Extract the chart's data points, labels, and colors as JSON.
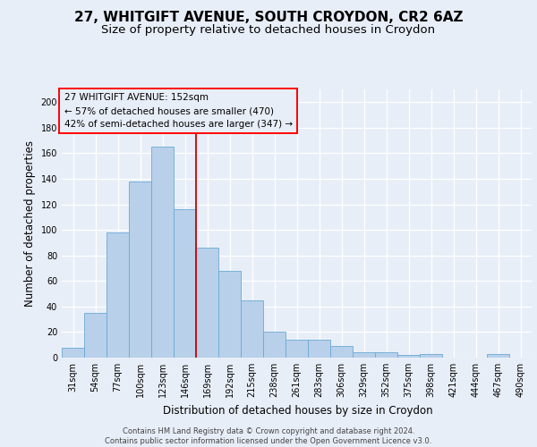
{
  "title1": "27, WHITGIFT AVENUE, SOUTH CROYDON, CR2 6AZ",
  "title2": "Size of property relative to detached houses in Croydon",
  "xlabel": "Distribution of detached houses by size in Croydon",
  "ylabel": "Number of detached properties",
  "categories": [
    "31sqm",
    "54sqm",
    "77sqm",
    "100sqm",
    "123sqm",
    "146sqm",
    "169sqm",
    "192sqm",
    "215sqm",
    "238sqm",
    "261sqm",
    "283sqm",
    "306sqm",
    "329sqm",
    "352sqm",
    "375sqm",
    "398sqm",
    "421sqm",
    "444sqm",
    "467sqm",
    "490sqm"
  ],
  "values": [
    8,
    35,
    98,
    138,
    165,
    116,
    86,
    68,
    45,
    20,
    14,
    14,
    9,
    4,
    4,
    2,
    3,
    0,
    0,
    3,
    0
  ],
  "bar_color": "#b8d0ea",
  "bar_edge_color": "#6aaad4",
  "vline_color": "#cc0000",
  "annotation_box_text": "27 WHITGIFT AVENUE: 152sqm\n← 57% of detached houses are smaller (470)\n42% of semi-detached houses are larger (347) →",
  "ylim": [
    0,
    210
  ],
  "yticks": [
    0,
    20,
    40,
    60,
    80,
    100,
    120,
    140,
    160,
    180,
    200
  ],
  "background_color": "#e8eef8",
  "grid_color": "#ffffff",
  "title_fontsize": 11,
  "subtitle_fontsize": 9.5,
  "label_fontsize": 8.5,
  "tick_fontsize": 7,
  "ann_fontsize": 7.5,
  "footer_fontsize": 6,
  "footer_text": "Contains HM Land Registry data © Crown copyright and database right 2024.\nContains public sector information licensed under the Open Government Licence v3.0."
}
